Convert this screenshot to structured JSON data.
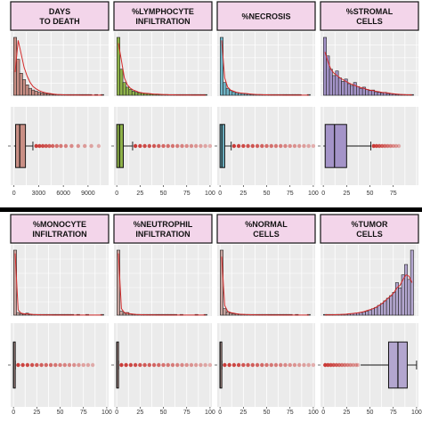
{
  "figure": {
    "background": "#ffffff",
    "panel_bg": "#ebebeb",
    "grid_color": "#ffffff",
    "strip_fill": "#f3d5ea",
    "strip_border": "#111111",
    "divider_color": "#000000",
    "density_color": "#d42a2a",
    "outlier_color": "#c8322e"
  },
  "chart_data": [
    {
      "type": "histogram+boxplot",
      "title": "DAYS\nTO DEATH",
      "fill": "#c98f85",
      "xlim": [
        -400,
        11500
      ],
      "xticks": [
        0,
        3000,
        6000,
        9000
      ],
      "xtick_labels": [
        "0",
        "3000",
        "6000",
        "9000"
      ],
      "hist": [
        1.0,
        0.62,
        0.38,
        0.27,
        0.18,
        0.12,
        0.09,
        0.07,
        0.05,
        0.04,
        0.03,
        0.025,
        0.02,
        0.015,
        0.01,
        0.008,
        0.006,
        0.005,
        0.004,
        0.003,
        0.003,
        0.002,
        0.002,
        0.001,
        0.001,
        0.001,
        0,
        0.001,
        0,
        0.001
      ],
      "density": [
        0.4,
        0.95,
        0.72,
        0.48,
        0.33,
        0.22,
        0.15,
        0.11,
        0.08,
        0.06,
        0.045,
        0.035,
        0.026,
        0.019,
        0.014,
        0.01,
        0.008,
        0.006,
        0.005,
        0.004,
        0.003,
        0.003,
        0.002,
        0.002,
        0.001,
        0.001,
        0.001,
        0.001,
        0.001,
        0.001
      ],
      "box": {
        "min": 0,
        "q1": 200,
        "median": 700,
        "q3": 1400,
        "max": 2300
      },
      "outliers": [
        2700,
        3100,
        3500,
        3900,
        4300,
        4700,
        5200,
        5700,
        6300,
        7000,
        7800,
        8600,
        9400,
        10300
      ]
    },
    {
      "type": "histogram+boxplot",
      "title": "%LYMPHOCYTE\nINFILTRATION",
      "fill": "#8fb34a",
      "xlim": [
        -3,
        102
      ],
      "xticks": [
        0,
        25,
        50,
        75,
        100
      ],
      "xtick_labels": [
        "0",
        "25",
        "50",
        "75",
        "100"
      ],
      "hist": [
        1.0,
        0.45,
        0.22,
        0.14,
        0.1,
        0.07,
        0.05,
        0.04,
        0.035,
        0.03,
        0.025,
        0.02,
        0.018,
        0.015,
        0.012,
        0.01,
        0.008,
        0.007,
        0.006,
        0.005,
        0.004,
        0.004,
        0.003,
        0.003,
        0.002,
        0.002,
        0.002,
        0.001,
        0.001,
        0.001
      ],
      "density": [
        0.9,
        0.6,
        0.3,
        0.18,
        0.12,
        0.09,
        0.07,
        0.05,
        0.04,
        0.035,
        0.03,
        0.025,
        0.02,
        0.018,
        0.015,
        0.012,
        0.01,
        0.008,
        0.007,
        0.006,
        0.005,
        0.004,
        0.004,
        0.003,
        0.003,
        0.002,
        0.002,
        0.002,
        0.001,
        0.001
      ],
      "box": {
        "min": 0,
        "q1": 0,
        "median": 3,
        "q3": 7,
        "max": 17
      },
      "outliers": [
        20,
        25,
        30,
        35,
        40,
        45,
        50,
        55,
        60,
        65,
        70,
        75,
        80,
        85,
        90,
        95,
        100
      ]
    },
    {
      "type": "histogram+boxplot",
      "title": "%NECROSIS",
      "fill": "#6fb5c7",
      "xlim": [
        -3,
        102
      ],
      "xticks": [
        0,
        25,
        50,
        75,
        100
      ],
      "xtick_labels": [
        "0",
        "25",
        "50",
        "75",
        "100"
      ],
      "hist": [
        1.0,
        0.22,
        0.12,
        0.08,
        0.06,
        0.045,
        0.035,
        0.03,
        0.025,
        0.02,
        0.016,
        0.013,
        0.01,
        0.008,
        0.007,
        0.006,
        0.005,
        0.004,
        0.003,
        0.003,
        0.002,
        0.002,
        0.002,
        0.001,
        0.001,
        0.001,
        0.001,
        0,
        0,
        0.001
      ],
      "density": [
        0.95,
        0.3,
        0.14,
        0.09,
        0.07,
        0.05,
        0.04,
        0.035,
        0.03,
        0.025,
        0.02,
        0.016,
        0.013,
        0.01,
        0.008,
        0.007,
        0.006,
        0.005,
        0.004,
        0.003,
        0.003,
        0.002,
        0.002,
        0.002,
        0.001,
        0.001,
        0.001,
        0.001,
        0.001,
        0.001
      ],
      "box": {
        "min": 0,
        "q1": 0,
        "median": 2,
        "q3": 5,
        "max": 12
      },
      "outliers": [
        15,
        20,
        25,
        30,
        35,
        40,
        45,
        50,
        55,
        60,
        65,
        70,
        75,
        80,
        85,
        90,
        95,
        100
      ]
    },
    {
      "type": "histogram+boxplot",
      "title": "%STROMAL\nCELLS",
      "fill": "#a494c8",
      "xlim": [
        -3,
        102
      ],
      "xticks": [
        0,
        25,
        50,
        75
      ],
      "xtick_labels": [
        "0",
        "25",
        "50",
        "75"
      ],
      "hist": [
        1.0,
        0.68,
        0.45,
        0.34,
        0.42,
        0.3,
        0.24,
        0.28,
        0.2,
        0.17,
        0.22,
        0.15,
        0.12,
        0.14,
        0.1,
        0.08,
        0.09,
        0.06,
        0.05,
        0.04,
        0.05,
        0.03,
        0.025,
        0.02,
        0.015,
        0.012,
        0.01,
        0.008,
        0.005,
        0.004
      ],
      "density": [
        0.75,
        0.58,
        0.45,
        0.38,
        0.34,
        0.3,
        0.27,
        0.24,
        0.21,
        0.19,
        0.17,
        0.15,
        0.13,
        0.12,
        0.1,
        0.09,
        0.08,
        0.07,
        0.06,
        0.05,
        0.045,
        0.04,
        0.03,
        0.025,
        0.02,
        0.016,
        0.012,
        0.009,
        0.007,
        0.005
      ],
      "box": {
        "min": 0,
        "q1": 2,
        "median": 12,
        "q3": 25,
        "max": 51
      },
      "outliers": [
        54,
        57,
        60,
        63,
        66,
        69,
        72,
        75,
        78,
        81
      ]
    },
    {
      "type": "histogram+boxplot",
      "title": "%MONOCYTE\nINFILTRATION",
      "fill": "#c9a5a0",
      "xlim": [
        -3,
        102
      ],
      "xticks": [
        0,
        25,
        50,
        75,
        100
      ],
      "xtick_labels": [
        "0",
        "25",
        "50",
        "75",
        "100"
      ],
      "hist": [
        1.0,
        0.04,
        0.02,
        0.015,
        0.03,
        0.01,
        0.008,
        0.006,
        0.005,
        0.004,
        0.003,
        0.003,
        0.002,
        0.002,
        0.002,
        0.001,
        0.001,
        0.001,
        0.001,
        0.001,
        0,
        0.001,
        0,
        0,
        0.001,
        0,
        0,
        0,
        0,
        0.001
      ],
      "density": [
        0.95,
        0.08,
        0.03,
        0.02,
        0.02,
        0.015,
        0.01,
        0.008,
        0.006,
        0.005,
        0.004,
        0.003,
        0.003,
        0.002,
        0.002,
        0.002,
        0.001,
        0.001,
        0.001,
        0.001,
        0.001,
        0.001,
        0.001,
        0.001,
        0.001,
        0.001,
        0.001,
        0.001,
        0.001,
        0.001
      ],
      "box": {
        "min": 0,
        "q1": 0,
        "median": 0,
        "q3": 1,
        "max": 2
      },
      "outliers": [
        5,
        10,
        15,
        20,
        25,
        30,
        35,
        40,
        45,
        50,
        55,
        60,
        65,
        70,
        75,
        80,
        85
      ]
    },
    {
      "type": "histogram+boxplot",
      "title": "%NEUTROPHIL\nINFILTRATION",
      "fill": "#c9a5a0",
      "xlim": [
        -3,
        102
      ],
      "xticks": [
        0,
        25,
        50,
        75,
        100
      ],
      "xtick_labels": [
        "0",
        "25",
        "50",
        "75",
        "100"
      ],
      "hist": [
        1.0,
        0.06,
        0.03,
        0.04,
        0.02,
        0.015,
        0.01,
        0.008,
        0.006,
        0.005,
        0.004,
        0.003,
        0.003,
        0.002,
        0.002,
        0.001,
        0.001,
        0.001,
        0.001,
        0.001,
        0,
        0.001,
        0,
        0,
        0,
        0,
        0.001,
        0,
        0,
        0.001
      ],
      "density": [
        0.95,
        0.1,
        0.04,
        0.03,
        0.02,
        0.015,
        0.01,
        0.008,
        0.006,
        0.005,
        0.004,
        0.003,
        0.003,
        0.002,
        0.002,
        0.002,
        0.001,
        0.001,
        0.001,
        0.001,
        0.001,
        0.001,
        0.001,
        0.001,
        0.001,
        0.001,
        0.001,
        0.001,
        0.001,
        0.001
      ],
      "box": {
        "min": 0,
        "q1": 0,
        "median": 0,
        "q3": 1,
        "max": 2
      },
      "outliers": [
        5,
        10,
        15,
        20,
        25,
        30,
        35,
        40,
        45,
        50,
        55,
        60,
        65,
        70,
        75,
        80,
        85,
        90,
        95,
        100
      ]
    },
    {
      "type": "histogram+boxplot",
      "title": "%NORMAL\nCELLS",
      "fill": "#c9a5a0",
      "xlim": [
        -3,
        102
      ],
      "xticks": [
        0,
        25,
        50,
        75,
        100
      ],
      "xtick_labels": [
        "0",
        "25",
        "50",
        "75",
        "100"
      ],
      "hist": [
        1.0,
        0.1,
        0.05,
        0.03,
        0.02,
        0.02,
        0.015,
        0.01,
        0.008,
        0.006,
        0.005,
        0.004,
        0.004,
        0.003,
        0.003,
        0.002,
        0.002,
        0.002,
        0.001,
        0.001,
        0.001,
        0.001,
        0.001,
        0.001,
        0,
        0.001,
        0,
        0,
        0,
        0.001
      ],
      "density": [
        0.9,
        0.15,
        0.06,
        0.04,
        0.03,
        0.02,
        0.015,
        0.012,
        0.01,
        0.008,
        0.006,
        0.005,
        0.004,
        0.004,
        0.003,
        0.003,
        0.002,
        0.002,
        0.002,
        0.001,
        0.001,
        0.001,
        0.001,
        0.001,
        0.001,
        0.001,
        0.001,
        0.001,
        0.001,
        0.001
      ],
      "box": {
        "min": 0,
        "q1": 0,
        "median": 0,
        "q3": 1,
        "max": 2
      },
      "outliers": [
        5,
        10,
        15,
        20,
        25,
        30,
        35,
        40,
        45,
        50,
        55,
        60,
        65,
        70,
        75,
        80,
        85,
        90,
        95,
        100
      ]
    },
    {
      "type": "histogram+boxplot",
      "title": "%TUMOR\nCELLS",
      "fill": "#b3a6cf",
      "xlim": [
        -3,
        102
      ],
      "xticks": [
        0,
        25,
        50,
        75,
        100
      ],
      "xtick_labels": [
        "0",
        "25",
        "50",
        "75",
        "100"
      ],
      "hist": [
        0.003,
        0.004,
        0.005,
        0.006,
        0.008,
        0.01,
        0.012,
        0.015,
        0.02,
        0.025,
        0.03,
        0.035,
        0.04,
        0.05,
        0.06,
        0.08,
        0.1,
        0.12,
        0.15,
        0.18,
        0.22,
        0.26,
        0.3,
        0.35,
        0.5,
        0.42,
        0.62,
        0.78,
        0.55,
        1.0
      ],
      "density": [
        0.003,
        0.004,
        0.005,
        0.006,
        0.008,
        0.01,
        0.012,
        0.015,
        0.02,
        0.025,
        0.03,
        0.035,
        0.045,
        0.055,
        0.07,
        0.085,
        0.1,
        0.12,
        0.15,
        0.18,
        0.22,
        0.26,
        0.3,
        0.35,
        0.42,
        0.46,
        0.55,
        0.62,
        0.6,
        0.5
      ],
      "box": {
        "min": 40,
        "q1": 70,
        "median": 80,
        "q3": 90,
        "max": 100
      },
      "outliers": [
        2,
        5,
        8,
        11,
        14,
        17,
        20,
        23,
        26,
        29,
        32,
        35,
        37
      ]
    }
  ]
}
